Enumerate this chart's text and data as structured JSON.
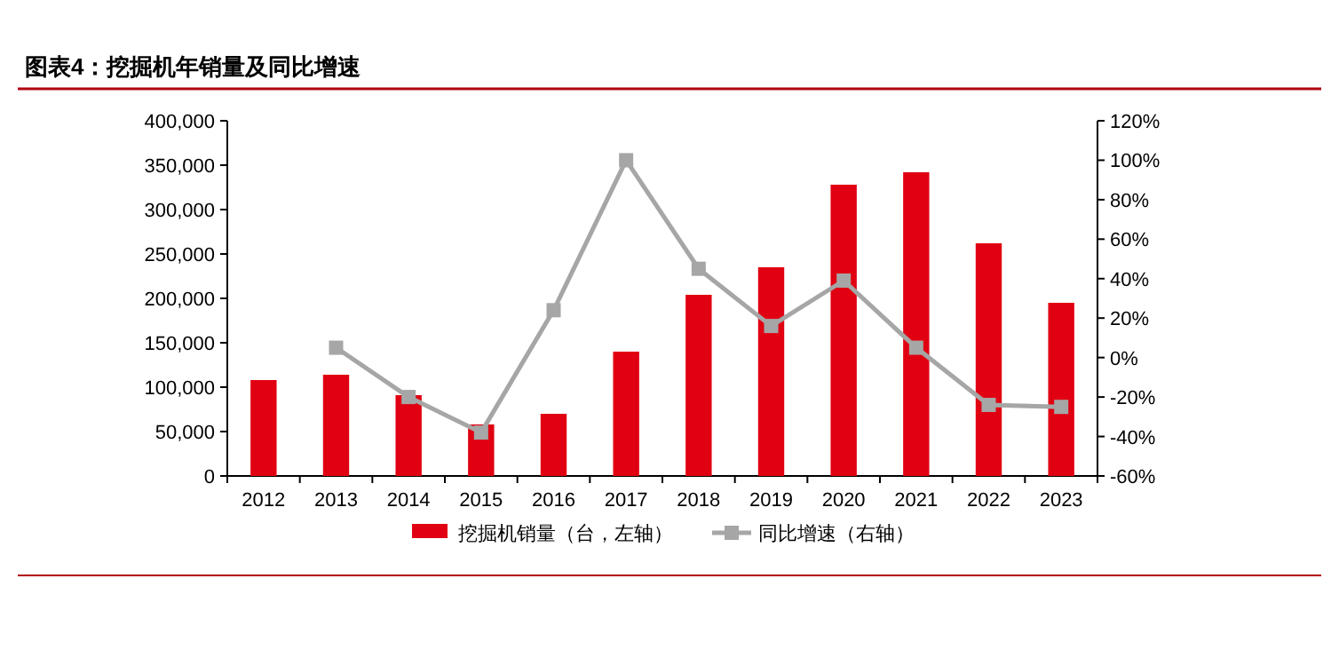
{
  "chart_data": {
    "type": "bar",
    "title": "图表4：挖掘机年销量及同比增速",
    "categories": [
      "2012",
      "2013",
      "2014",
      "2015",
      "2016",
      "2017",
      "2018",
      "2019",
      "2020",
      "2021",
      "2022",
      "2023"
    ],
    "series": [
      {
        "name": "挖掘机销量（台，左轴）",
        "color": "#e00012",
        "values": [
          108000,
          114000,
          91000,
          58000,
          70000,
          140000,
          204000,
          235000,
          328000,
          342000,
          262000,
          195000
        ]
      },
      {
        "name": "同比增速（右轴）",
        "type": "line",
        "axis": "y2",
        "color": "#a6a6a6",
        "marker": "square",
        "values": [
          null,
          5,
          -20,
          -38,
          24,
          100,
          45,
          16,
          39,
          5,
          -24,
          -25
        ]
      }
    ],
    "ylim": [
      0,
      400000
    ],
    "yticks": [
      0,
      {
        "value": 50000,
        "label": "50,000"
      },
      {
        "value": 100000,
        "label": "100,000"
      },
      {
        "value": 150000,
        "label": "150,000"
      },
      {
        "value": 200000,
        "label": "200,000"
      },
      {
        "value": 250000,
        "label": "250,000"
      },
      {
        "value": 300000,
        "label": "300,000"
      },
      {
        "value": 350000,
        "label": "350,000"
      },
      {
        "value": 400000,
        "label": "400,000"
      }
    ],
    "y2lim": [
      -60,
      120
    ],
    "y2ticks": [
      {
        "value": -60,
        "label": "-60%"
      },
      {
        "value": -40,
        "label": "-40%"
      },
      {
        "value": -20,
        "label": "-20%"
      },
      {
        "value": 0,
        "label": "0%"
      },
      {
        "value": 20,
        "label": "20%"
      },
      {
        "value": 40,
        "label": "40%"
      },
      {
        "value": 60,
        "label": "60%"
      },
      {
        "value": 80,
        "label": "80%"
      },
      {
        "value": 100,
        "label": "100%"
      },
      {
        "value": 120,
        "label": "120%"
      }
    ],
    "legend": "bottom",
    "grid": false
  }
}
